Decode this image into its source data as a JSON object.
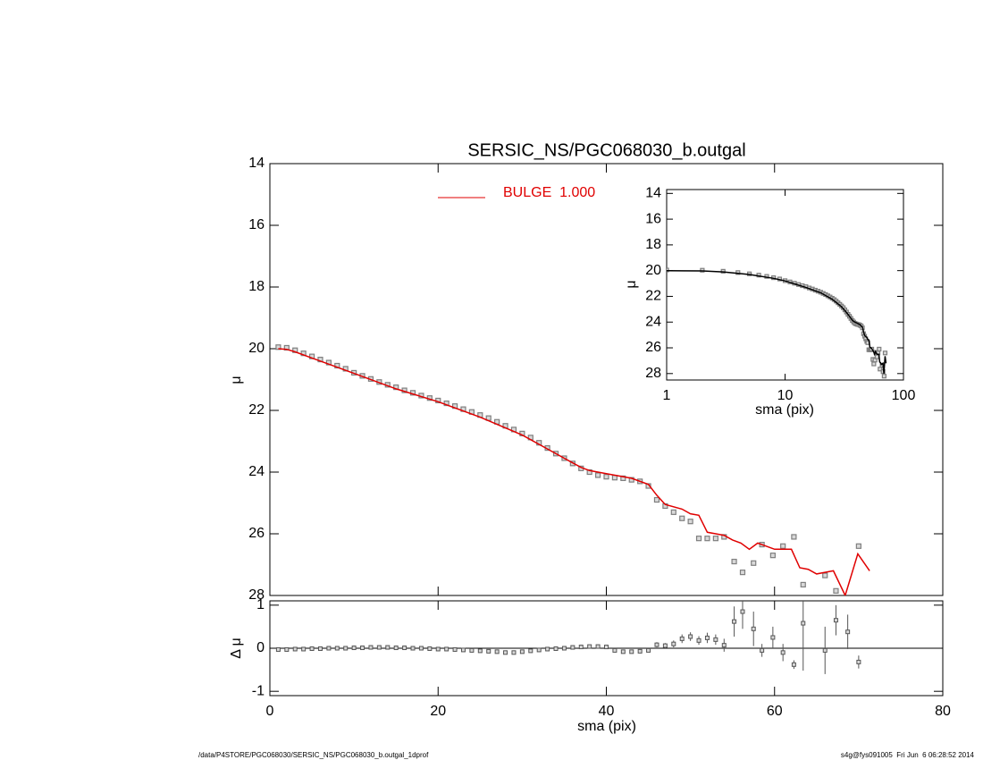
{
  "chart_data": [
    {
      "type": "scatter",
      "title": "SERSIC_NS/PGC068030_b.outgal",
      "y_label": "μ",
      "xlim": [
        0,
        80
      ],
      "xticks": [
        0,
        20,
        40,
        60,
        80
      ],
      "ylim": [
        28,
        14
      ],
      "yticks": [
        14,
        16,
        18,
        20,
        22,
        24,
        26,
        28
      ],
      "legend": "top-center",
      "x": [
        1,
        2,
        3,
        4,
        5,
        6,
        7,
        8,
        9,
        10,
        11,
        12,
        13,
        14,
        15,
        16,
        17,
        18,
        19,
        20,
        21,
        22,
        23,
        24,
        25,
        26,
        27,
        28,
        29,
        30,
        31,
        32,
        33,
        34,
        35,
        36,
        37,
        38,
        39,
        40,
        41,
        42,
        43,
        44,
        45,
        46,
        47,
        48,
        49,
        50,
        51,
        52,
        53,
        54,
        55.2,
        56.2,
        57.5,
        58.5,
        59.8,
        61.0,
        62.3,
        63.4,
        66.0,
        67.3,
        68.7,
        70.0
      ],
      "series": [
        {
          "color": "#7f7f7f",
          "marker": "square",
          "values": [
            19.95,
            19.97,
            20.05,
            20.15,
            20.25,
            20.35,
            20.45,
            20.55,
            20.65,
            20.78,
            20.88,
            20.98,
            21.08,
            21.17,
            21.25,
            21.35,
            21.43,
            21.52,
            21.6,
            21.68,
            21.77,
            21.86,
            21.96,
            22.05,
            22.15,
            22.25,
            22.37,
            22.5,
            22.62,
            22.75,
            22.88,
            23.05,
            23.22,
            23.4,
            23.55,
            23.72,
            23.88,
            24.0,
            24.1,
            24.15,
            24.18,
            24.2,
            24.25,
            24.3,
            24.45,
            24.9,
            25.1,
            25.3,
            25.5,
            25.6,
            26.15,
            26.15,
            26.15,
            26.1,
            26.9,
            27.25,
            26.95,
            26.35,
            26.7,
            26.4,
            26.1,
            27.65,
            27.35,
            27.85,
            28.2,
            26.4
          ]
        },
        {
          "name": "BULGE  1.000",
          "color": "#e00000",
          "marker": "line",
          "x": [
            1,
            2,
            3,
            5,
            8,
            10,
            15,
            20,
            25,
            30,
            33,
            35,
            37,
            38,
            40,
            43,
            45,
            46,
            47,
            49,
            50,
            51,
            52,
            53,
            54,
            55,
            56,
            57,
            58,
            59,
            60,
            61,
            62,
            63,
            64,
            65,
            66,
            67,
            68.4,
            69.9,
            71.3
          ],
          "values": [
            20.0,
            20.02,
            20.1,
            20.3,
            20.6,
            20.8,
            21.3,
            21.72,
            22.22,
            22.8,
            23.25,
            23.55,
            23.85,
            23.95,
            24.05,
            24.2,
            24.4,
            24.75,
            25.05,
            25.2,
            25.35,
            25.4,
            25.95,
            26.0,
            26.05,
            26.2,
            26.3,
            26.5,
            26.3,
            26.4,
            26.5,
            26.5,
            26.5,
            27.1,
            27.15,
            27.3,
            27.25,
            27.2,
            28.0,
            26.65,
            27.2
          ]
        }
      ]
    },
    {
      "type": "errorbar",
      "x_label": "sma (pix)",
      "y_label": "Δ μ",
      "xlim": [
        0,
        80
      ],
      "xticks": [
        0,
        20,
        40,
        60,
        80
      ],
      "ylim": [
        -1.1,
        1.1
      ],
      "yticks": [
        -1,
        0,
        1
      ],
      "color": "#555555",
      "values": [
        -0.03,
        -0.03,
        -0.02,
        -0.02,
        -0.01,
        -0.01,
        0,
        0,
        0,
        0.01,
        0.01,
        0.02,
        0.02,
        0.02,
        0.01,
        0.01,
        0,
        0,
        -0.01,
        -0.02,
        -0.02,
        -0.03,
        -0.04,
        -0.05,
        -0.06,
        -0.07,
        -0.08,
        -0.1,
        -0.1,
        -0.08,
        -0.06,
        -0.04,
        -0.02,
        -0.01,
        0,
        0.02,
        0.03,
        0.04,
        0.04,
        0.03,
        -0.05,
        -0.08,
        -0.08,
        -0.07,
        -0.05,
        0.08,
        0.06,
        0.1,
        0.22,
        0.27,
        0.18,
        0.24,
        0.2,
        0.07,
        0.62,
        0.85,
        0.45,
        -0.05,
        0.25,
        -0.1,
        -0.38,
        0.58,
        -0.05,
        0.65,
        0.38,
        -0.32
      ],
      "errors": [
        0.01,
        0.01,
        0.01,
        0.01,
        0.01,
        0.01,
        0.01,
        0.01,
        0.01,
        0.01,
        0.01,
        0.01,
        0.01,
        0.01,
        0.01,
        0.01,
        0.01,
        0.01,
        0.01,
        0.01,
        0.01,
        0.01,
        0.01,
        0.01,
        0.01,
        0.01,
        0.01,
        0.01,
        0.01,
        0.01,
        0.01,
        0.01,
        0.01,
        0.01,
        0.01,
        0.01,
        0.01,
        0.01,
        0.01,
        0.01,
        0.01,
        0.01,
        0.01,
        0.01,
        0.01,
        0.06,
        0.06,
        0.08,
        0.1,
        0.1,
        0.1,
        0.12,
        0.12,
        0.15,
        0.35,
        0.4,
        0.4,
        0.15,
        0.25,
        0.2,
        0.1,
        1.1,
        0.55,
        0.35,
        0.4,
        0.15
      ]
    },
    {
      "type": "scatter",
      "x_label": "sma (pix)",
      "y_label": "μ",
      "log_x": true,
      "xlim": [
        1,
        100
      ],
      "xticks": [
        1,
        10,
        100
      ],
      "ylim": [
        28.5,
        13.7
      ],
      "yticks": [
        14,
        16,
        18,
        20,
        22,
        24,
        26,
        28
      ]
    }
  ],
  "footer": {
    "left": "/data/P4STORE/PGC068030/SERSIC_NS/PGC068030_b.outgal_1dprof",
    "right": "s4g@fys091005  Fri Jun  6 06:28:52 2014"
  }
}
